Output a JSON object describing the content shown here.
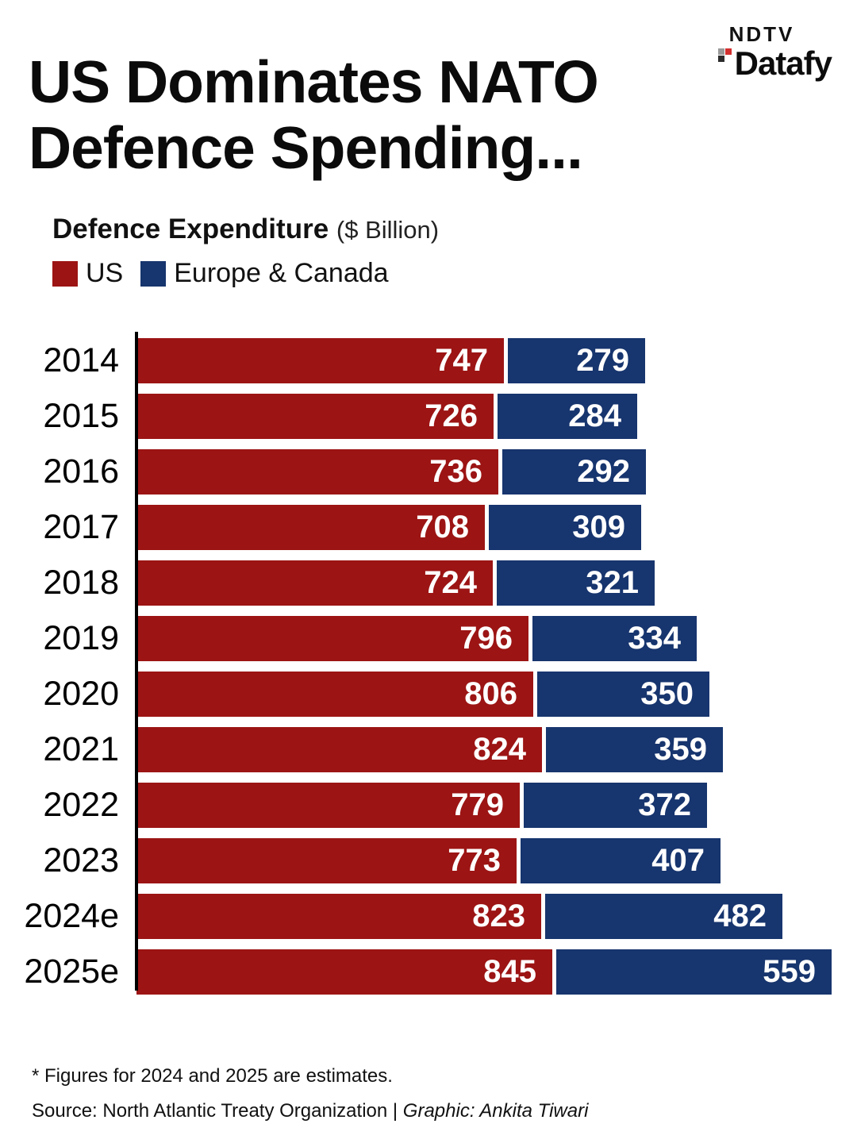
{
  "logo": {
    "ndtv": "NDTV",
    "datafy": "Datafy"
  },
  "title_line1": "US Dominates NATO",
  "title_line2": "Defence Spending...",
  "subtitle": {
    "bold": "Defence Expenditure",
    "unit": "($ Billion)"
  },
  "legend": [
    {
      "label": "US"
    },
    {
      "label": "Europe & Canada"
    }
  ],
  "colors": {
    "us": "#9C1414",
    "europe": "#17356E",
    "axis": "#000000"
  },
  "footnote": "* Figures for 2024 and 2025 are estimates.",
  "source_prefix": "Source: North Atlantic Treaty Organization | ",
  "source_italic": "Graphic: Ankita Tiwari",
  "chart_data": {
    "type": "bar",
    "orientation": "horizontal",
    "stacked": true,
    "title": "US Dominates NATO Defence Spending...",
    "subtitle": "Defence Expenditure ($ Billion)",
    "xlabel": "",
    "ylabel": "",
    "legend_position": "top-left",
    "grid": false,
    "value_labels": "inside-right",
    "categories": [
      "2014",
      "2015",
      "2016",
      "2017",
      "2018",
      "2019",
      "2020",
      "2021",
      "2022",
      "2023",
      "2024e",
      "2025e"
    ],
    "series": [
      {
        "name": "US",
        "color": "#9C1414",
        "values": [
          747,
          726,
          736,
          708,
          724,
          796,
          806,
          824,
          779,
          773,
          823,
          845
        ]
      },
      {
        "name": "Europe & Canada",
        "color": "#17356E",
        "values": [
          279,
          284,
          292,
          309,
          321,
          334,
          350,
          359,
          372,
          407,
          482,
          559
        ]
      }
    ]
  }
}
